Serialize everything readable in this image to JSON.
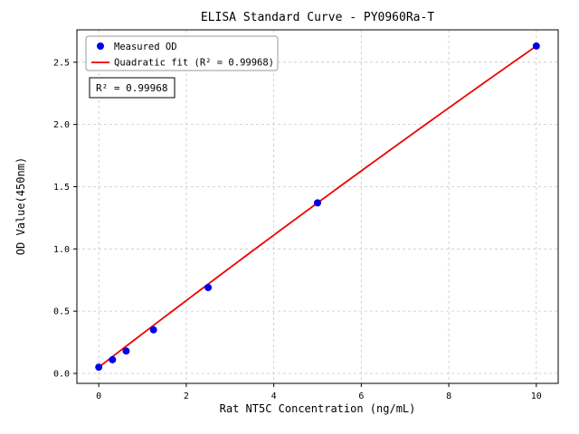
{
  "title": "ELISA Standard Curve - PY0960Ra-T",
  "colors": {
    "points": "#0000ee",
    "fit_line": "#ee0000",
    "grid": "#c8c8c8",
    "axis": "#000000",
    "legend_border": "#999999",
    "annotation_border": "#000000",
    "background": "#ffffff"
  },
  "chart_data": {
    "type": "scatter",
    "title": "ELISA Standard Curve - PY0960Ra-T",
    "xlabel": "Rat NT5C Concentration (ng/mL)",
    "ylabel": "OD Value(450nm)",
    "xlim": [
      -0.5,
      10.5
    ],
    "ylim": [
      -0.08,
      2.76
    ],
    "xticks": [
      0,
      2,
      4,
      6,
      8,
      10
    ],
    "yticks": [
      0.0,
      0.5,
      1.0,
      1.5,
      2.0,
      2.5
    ],
    "grid": true,
    "grid_style": "dashed",
    "legend_position": "upper-left",
    "series": [
      {
        "name": "Measured OD",
        "type": "scatter",
        "color": "#0000ee",
        "x": [
          0,
          0.313,
          0.625,
          1.25,
          2.5,
          5,
          10
        ],
        "y": [
          0.05,
          0.11,
          0.18,
          0.35,
          0.69,
          1.37,
          2.63
        ]
      },
      {
        "name": "Quadratic fit (R² = 0.99968)",
        "type": "line",
        "fit": "quadratic",
        "color": "#ee0000",
        "x_range": [
          0,
          10
        ]
      }
    ],
    "annotation": "R² = 0.99968",
    "r_squared": 0.99968
  }
}
